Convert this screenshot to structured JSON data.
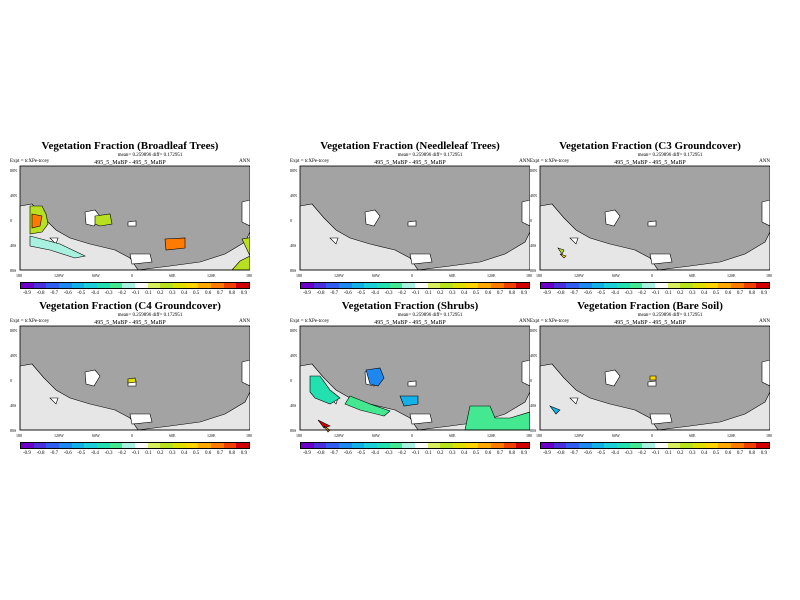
{
  "figure": {
    "expt_label": "Expt = tcXPe-tccey",
    "stat_line": "mean= 0.259896 diff= 0.172951",
    "run_label": "495_5_MaBP - 495_5_MaBP",
    "season": "ANN",
    "lat_labels": [
      "80N",
      "40N",
      "0",
      "40S",
      "80S"
    ],
    "lon_labels": [
      "180",
      "120W",
      "60W",
      "0",
      "60E",
      "120E",
      "180"
    ],
    "colorbar_ticks": [
      "-0.9",
      "-0.8",
      "-0.7",
      "-0.6",
      "-0.5",
      "-0.4",
      "-0.3",
      "-0.2",
      "-0.1",
      "0.1",
      "0.2",
      "0.3",
      "0.4",
      "0.5",
      "0.6",
      "0.7",
      "0.8",
      "0.9"
    ],
    "colorbar_colors": [
      "#6b00c8",
      "#4b30e0",
      "#2f5ef0",
      "#1e88f0",
      "#14b0e8",
      "#1ccfd8",
      "#22e0b0",
      "#44e890",
      "#a8f0e0",
      "#ffffff",
      "#d8f060",
      "#b8e020",
      "#e0e000",
      "#ffd400",
      "#ffa800",
      "#ff7a00",
      "#f04000",
      "#d00000"
    ],
    "ocean_color": "#ffffff",
    "land_color": "#e6e6e6",
    "grey_mask_color": "#a3a3a3"
  },
  "panels": [
    {
      "title": "Vegetation Fraction (Broadleaf Trees)",
      "variable": "broadleaf-trees"
    },
    {
      "title": "Vegetation Fraction (Needleleaf Trees)",
      "variable": "needleleaf-trees"
    },
    {
      "title": "Vegetation Fraction (C3 Groundcover)",
      "variable": "c3-groundcover"
    },
    {
      "title": "Vegetation Fraction (C4 Groundcover)",
      "variable": "c4-groundcover"
    },
    {
      "title": "Vegetation Fraction (Shrubs)",
      "variable": "shrubs"
    },
    {
      "title": "Vegetation Fraction (Bare Soil)",
      "variable": "bare-soil"
    }
  ]
}
